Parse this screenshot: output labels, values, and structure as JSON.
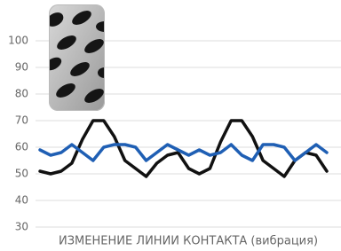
{
  "chart_data": {
    "type": "line",
    "x_label": "ИЗМЕНЕНИЕ ЛИНИИ КОНТАКТА (вибрация)",
    "series": [
      {
        "color": "#111111",
        "values": [
          51,
          50,
          51,
          54,
          63,
          70,
          70,
          64,
          55,
          52,
          49,
          54,
          57,
          58,
          52,
          50,
          52,
          62,
          70,
          70,
          64,
          55,
          52,
          49,
          55,
          58,
          57,
          51
        ]
      },
      {
        "color": "#1f5fb4",
        "values": [
          59,
          57,
          58,
          61,
          58,
          55,
          60,
          61,
          61,
          60,
          55,
          58,
          61,
          59,
          57,
          59,
          57,
          58,
          61,
          57,
          55,
          61,
          61,
          60,
          55,
          58,
          61,
          58
        ]
      }
    ],
    "ylim": [
      30,
      100
    ],
    "yticks": [
      30,
      40,
      50,
      60,
      70,
      80,
      90,
      100
    ],
    "grid": true
  }
}
